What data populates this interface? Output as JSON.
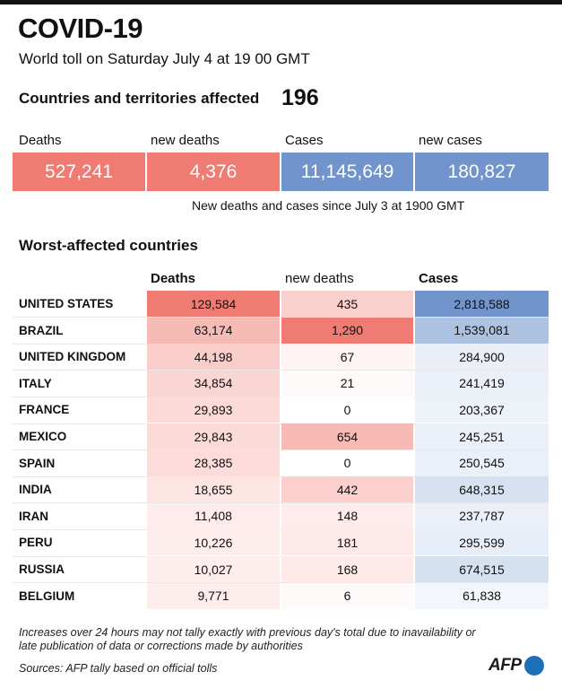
{
  "title": "COVID-19",
  "subtitle": "World toll on Saturday July 4 at 19 00 GMT",
  "affected": {
    "label": "Countries and territories affected",
    "value": "196"
  },
  "summary": {
    "headers": [
      "Deaths",
      "new deaths",
      "Cases",
      "new cases"
    ],
    "values": [
      "527,241",
      "4,376",
      "11,145,649",
      "180,827"
    ],
    "note": "New deaths and cases since July 3 at 1900 GMT"
  },
  "table": {
    "title": "Worst-affected countries",
    "headers": {
      "deaths": "Deaths",
      "new_deaths": "new deaths",
      "cases": "Cases"
    },
    "rows": [
      {
        "country": "UNITED STATES",
        "deaths": "129,584",
        "new_deaths": "435",
        "cases": "2,818,588"
      },
      {
        "country": "BRAZIL",
        "deaths": "63,174",
        "new_deaths": "1,290",
        "cases": "1,539,081"
      },
      {
        "country": "UNITED KINGDOM",
        "deaths": "44,198",
        "new_deaths": "67",
        "cases": "284,900"
      },
      {
        "country": "ITALY",
        "deaths": "34,854",
        "new_deaths": "21",
        "cases": "241,419"
      },
      {
        "country": "FRANCE",
        "deaths": "29,893",
        "new_deaths": "0",
        "cases": "203,367"
      },
      {
        "country": "MEXICO",
        "deaths": "29,843",
        "new_deaths": "654",
        "cases": "245,251"
      },
      {
        "country": "SPAIN",
        "deaths": "28,385",
        "new_deaths": "0",
        "cases": "250,545"
      },
      {
        "country": "INDIA",
        "deaths": "18,655",
        "new_deaths": "442",
        "cases": "648,315"
      },
      {
        "country": "IRAN",
        "deaths": "11,408",
        "new_deaths": "148",
        "cases": "237,787"
      },
      {
        "country": "PERU",
        "deaths": "10,226",
        "new_deaths": "181",
        "cases": "295,599"
      },
      {
        "country": "RUSSIA",
        "deaths": "10,027",
        "new_deaths": "168",
        "cases": "674,515"
      },
      {
        "country": "BELGIUM",
        "deaths": "9,771",
        "new_deaths": "6",
        "cases": "61,838"
      }
    ]
  },
  "footnote": "Increases over 24 hours may not tally exactly with previous day's total due to inavailability or late publication of data or corrections made by authorities",
  "sources": "Sources: AFP tally based on official tolls",
  "logo": "AFP",
  "colors": {
    "deaths_red": "#f07b72",
    "cases_blue": "#7094cb"
  }
}
